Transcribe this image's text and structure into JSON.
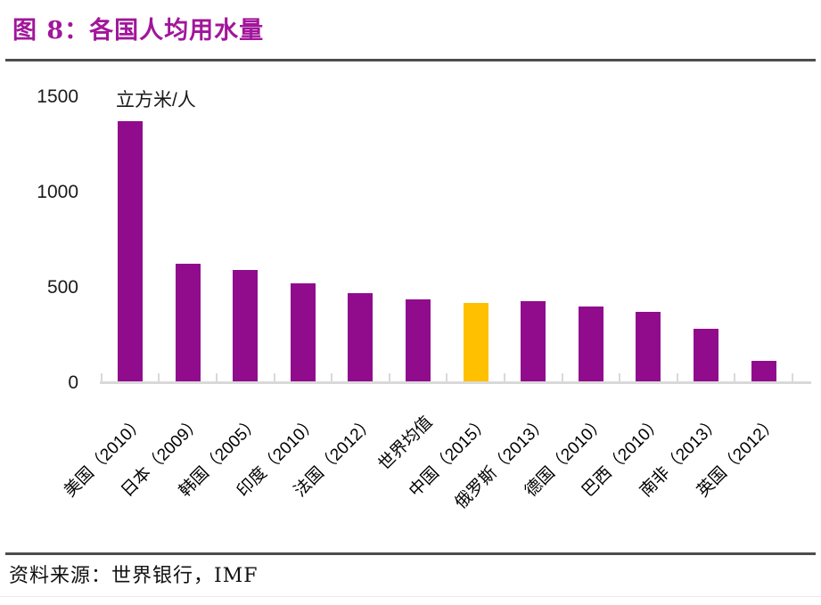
{
  "figure": {
    "title": "图 8：各国人均用水量",
    "source": "资料来源：世界银行，IMF"
  },
  "chart_data": {
    "type": "bar",
    "title": "各国人均用水量",
    "unit_label": "立方米/人",
    "ylabel": "立方米/人",
    "categories": [
      "美国（2010）",
      "日本（2009）",
      "韩国（2005）",
      "印度（2010）",
      "法国（2012）",
      "世界均值",
      "中国（2015）",
      "俄罗斯（2013）",
      "德国（2010）",
      "巴西（2010）",
      "南非（2013）",
      "英国（2012）"
    ],
    "values": [
      1380,
      630,
      600,
      530,
      475,
      445,
      425,
      435,
      405,
      380,
      290,
      120
    ],
    "highlight_index": 6,
    "ylim": [
      0,
      1500
    ],
    "yticks": [
      0,
      500,
      1000,
      1500
    ],
    "grid": false,
    "legend": "none",
    "colors": {
      "bar": "#900C8D",
      "highlight": "#FFC000",
      "axis": "#D9D9D9",
      "title": "#A1169A",
      "text": "#1A1A1A",
      "rule": "#4D4D4D"
    }
  }
}
